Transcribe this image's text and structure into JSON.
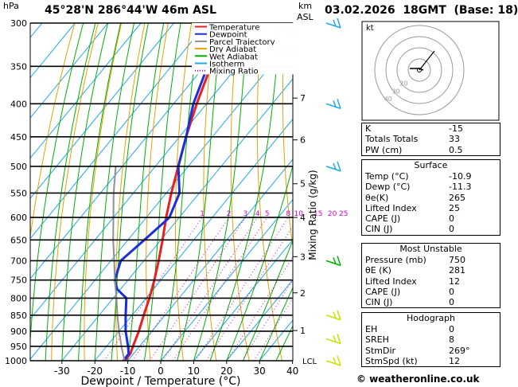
{
  "header": {
    "hpa_label": "hPa",
    "location": "45°28'N  286°44'W  46m  ASL",
    "km_label": "km",
    "asl_label": "ASL",
    "datetime": "03.02.2026  18GMT  (Base: 18)"
  },
  "chart_data": {
    "type": "skew-t",
    "xlabel": "Dewpoint / Temperature (°C)",
    "ylabel_left": "hPa",
    "y2label": "Mixing Ratio (g/kg)",
    "pressure_ticks": [
      300,
      350,
      400,
      450,
      500,
      550,
      600,
      650,
      700,
      750,
      800,
      850,
      900,
      950,
      1000
    ],
    "temp_ticks": [
      -30,
      -20,
      -10,
      0,
      10,
      20,
      30,
      40
    ],
    "xlim": [
      -40,
      40
    ],
    "ylim_hpa": [
      1000,
      300
    ],
    "km_ticks": [
      {
        "label": "7",
        "p": 392
      },
      {
        "label": "6",
        "p": 455
      },
      {
        "label": "5",
        "p": 532
      },
      {
        "label": "4",
        "p": 600
      },
      {
        "label": "3",
        "p": 690
      },
      {
        "label": "2",
        "p": 785
      },
      {
        "label": "1",
        "p": 898
      }
    ],
    "lcl": {
      "label": "LCL",
      "p": 1000
    },
    "mixing_ratio_labels": [
      "1",
      "2",
      "3",
      "4",
      "5",
      "8",
      "10",
      "15",
      "20",
      "25"
    ],
    "mixing_ratio_values": [
      1,
      2,
      3,
      4,
      5,
      8,
      10,
      15,
      20,
      25
    ],
    "legend": [
      {
        "label": "Temperature",
        "color": "#e82020"
      },
      {
        "label": "Dewpoint",
        "color": "#1a2ee0"
      },
      {
        "label": "Parcel Trajectory",
        "color": "#909090"
      },
      {
        "label": "Dry Adiabat",
        "color": "#e8a000"
      },
      {
        "label": "Wet Adiabat",
        "color": "#00b000"
      },
      {
        "label": "Isotherm",
        "color": "#20a8e8"
      },
      {
        "label": "Mixing Ratio",
        "color": "#d000d0"
      }
    ],
    "series": [
      {
        "name": "Temperature",
        "points": [
          [
            1000,
            -10.9
          ],
          [
            975,
            -11
          ],
          [
            950,
            -12
          ],
          [
            900,
            -14
          ],
          [
            850,
            -16.5
          ],
          [
            800,
            -19
          ],
          [
            750,
            -22
          ],
          [
            700,
            -25.5
          ],
          [
            650,
            -29.5
          ],
          [
            600,
            -34
          ],
          [
            550,
            -38.5
          ],
          [
            500,
            -43
          ],
          [
            450,
            -48
          ],
          [
            400,
            -53
          ],
          [
            350,
            -58
          ],
          [
            300,
            -63
          ]
        ]
      },
      {
        "name": "Dewpoint",
        "points": [
          [
            1000,
            -11.3
          ],
          [
            975,
            -11.5
          ],
          [
            950,
            -13.5
          ],
          [
            900,
            -18
          ],
          [
            850,
            -22
          ],
          [
            800,
            -26
          ],
          [
            775,
            -31
          ],
          [
            750,
            -34
          ],
          [
            700,
            -37
          ],
          [
            650,
            -35
          ],
          [
            600,
            -33
          ],
          [
            550,
            -36
          ],
          [
            500,
            -43
          ],
          [
            450,
            -48
          ],
          [
            400,
            -54
          ],
          [
            350,
            -59
          ],
          [
            300,
            -64
          ]
        ]
      },
      {
        "name": "Parcel Trajectory",
        "points": [
          [
            1000,
            -11
          ],
          [
            950,
            -15.5
          ],
          [
            900,
            -20
          ],
          [
            850,
            -24.5
          ],
          [
            800,
            -29
          ],
          [
            750,
            -34
          ],
          [
            700,
            -39
          ],
          [
            650,
            -44.5
          ],
          [
            600,
            -50
          ],
          [
            550,
            -56
          ],
          [
            500,
            -62
          ]
        ]
      }
    ],
    "hodograph": {
      "label": "kt",
      "ring_labels": [
        "10",
        "20",
        "30",
        "40"
      ],
      "storm_dir_deg": 269,
      "storm_speed_kt": 12
    }
  },
  "wind_barbs": [
    {
      "p": 300,
      "color": "#20a8e8"
    },
    {
      "p": 400,
      "color": "#20a8e8"
    },
    {
      "p": 500,
      "color": "#20a8e8"
    },
    {
      "p": 700,
      "color": "#00b000"
    },
    {
      "p": 850,
      "color": "#c8e000"
    },
    {
      "p": 925,
      "color": "#c8e000"
    },
    {
      "p": 1000,
      "color": "#c8e000"
    }
  ],
  "indices": {
    "k_label": "K",
    "k_val": "-15",
    "tt_label": "Totals Totals",
    "tt_val": "33",
    "pw_label": "PW (cm)",
    "pw_val": "0.5"
  },
  "surface": {
    "title": "Surface",
    "temp_label": "Temp (°C)",
    "temp_val": "-10.9",
    "dewp_label": "Dewp (°C)",
    "dewp_val": "-11.3",
    "theta_label": "θe(K)",
    "theta_val": "265",
    "li_label": "Lifted Index",
    "li_val": "25",
    "cape_label": "CAPE (J)",
    "cape_val": "0",
    "cin_label": "CIN (J)",
    "cin_val": "0"
  },
  "most_unstable": {
    "title": "Most Unstable",
    "pres_label": "Pressure (mb)",
    "pres_val": "750",
    "theta_label": "θE (K)",
    "theta_val": "281",
    "li_label": "Lifted Index",
    "li_val": "12",
    "cape_label": "CAPE (J)",
    "cape_val": "0",
    "cin_label": "CIN (J)",
    "cin_val": "0"
  },
  "hodograph_table": {
    "title": "Hodograph",
    "eh_label": "EH",
    "eh_val": "0",
    "sreh_label": "SREH",
    "sreh_val": "8",
    "stmdir_label": "StmDir",
    "stmdir_val": "269°",
    "stmspd_label": "StmSpd (kt)",
    "stmspd_val": "12"
  },
  "credit": "© weatheronline.co.uk"
}
